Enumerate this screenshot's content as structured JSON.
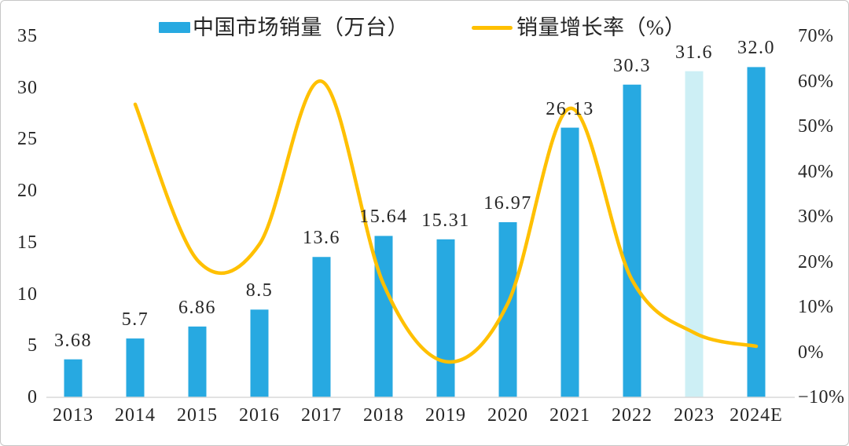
{
  "chart_data": {
    "type": "bar+line combo",
    "title": "",
    "legend_position": "top",
    "grid": false,
    "categories": [
      "2013",
      "2014",
      "2015",
      "2016",
      "2017",
      "2018",
      "2019",
      "2020",
      "2021",
      "2022",
      "2023",
      "2024E"
    ],
    "series": [
      {
        "name": "中国市场销量（万台）",
        "type": "bar",
        "axis": "left",
        "values": [
          3.68,
          5.7,
          6.86,
          8.5,
          13.6,
          15.64,
          15.31,
          16.97,
          26.13,
          30.3,
          31.6,
          32.0
        ],
        "value_labels": [
          "3.68",
          "5.7",
          "6.86",
          "8.5",
          "13.6",
          "15.64",
          "15.31",
          "16.97",
          "26.13",
          "30.3",
          "31.6",
          "32.0"
        ],
        "highlighted_category": "2023"
      },
      {
        "name": "销量增长率（%）",
        "type": "line",
        "axis": "right",
        "start_category": "2014",
        "values": [
          54.9,
          20.4,
          23.9,
          60.0,
          15.0,
          -2.1,
          10.8,
          54.0,
          16.0,
          4.3,
          1.3
        ]
      }
    ],
    "left_axis": {
      "min": 0,
      "max": 35,
      "ticks": [
        {
          "label": "35",
          "value": 35
        },
        {
          "label": "30",
          "value": 30
        },
        {
          "label": "25",
          "value": 25
        },
        {
          "label": "20",
          "value": 20
        },
        {
          "label": "15",
          "value": 15
        },
        {
          "label": "10",
          "value": 10
        },
        {
          "label": "5",
          "value": 5
        },
        {
          "label": "0",
          "value": 0
        }
      ]
    },
    "right_axis": {
      "min": -10,
      "max": 70,
      "ticks": [
        {
          "label": "70%",
          "value": 70
        },
        {
          "label": "60%",
          "value": 60
        },
        {
          "label": "50%",
          "value": 50
        },
        {
          "label": "40%",
          "value": 40
        },
        {
          "label": "30%",
          "value": 30
        },
        {
          "label": "20%",
          "value": 20
        },
        {
          "label": "10%",
          "value": 10
        },
        {
          "label": "0%",
          "value": 0
        },
        {
          "label": "−10%",
          "value": -10
        }
      ]
    },
    "colors": {
      "bar": "#27A9E1",
      "bar_highlight": "#CDEFF5",
      "line": "#FFC000",
      "axis_line": "#D9D9D9",
      "text": "#262626"
    }
  }
}
